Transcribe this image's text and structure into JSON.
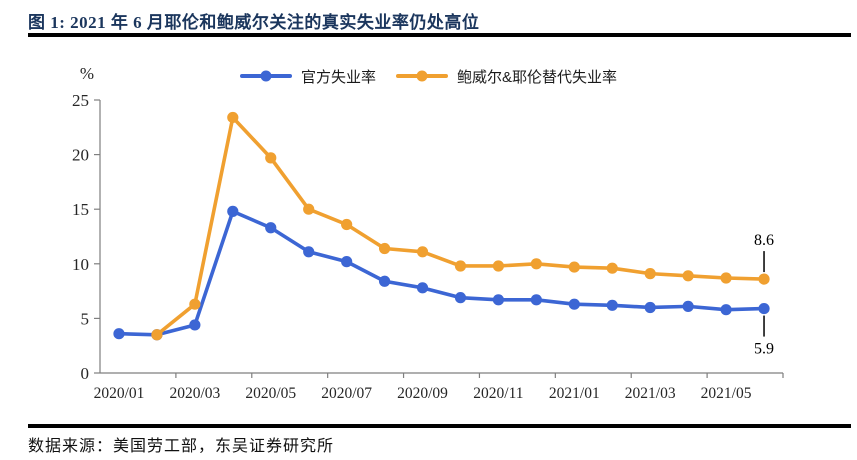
{
  "header": {
    "title": "图 1: 2021 年 6 月耶伦和鲍威尔关注的真实失业率仍处高位"
  },
  "footer": {
    "source": "数据来源：美国劳工部，东吴证券研究所"
  },
  "colors": {
    "title": "#1B365D",
    "rule": "#000000",
    "axis": "#7F7F7F",
    "tick": "#262626",
    "legend": "#1A1A1A",
    "callout": "#000000"
  },
  "chart_data": {
    "type": "line",
    "title": "",
    "y_axis_title": "%",
    "ylim": [
      0,
      25
    ],
    "y_ticks": [
      0,
      5,
      10,
      15,
      20,
      25
    ],
    "grid": false,
    "legend_position": "top",
    "x_categories": [
      "2020/01",
      "2020/02",
      "2020/03",
      "2020/04",
      "2020/05",
      "2020/06",
      "2020/07",
      "2020/08",
      "2020/09",
      "2020/10",
      "2020/11",
      "2020/12",
      "2021/01",
      "2021/02",
      "2021/03",
      "2021/04",
      "2021/05",
      "2021/06"
    ],
    "x_tick_labels": [
      "2020/01",
      "2020/03",
      "2020/05",
      "2020/07",
      "2020/09",
      "2020/11",
      "2021/01",
      "2021/03",
      "2021/05"
    ],
    "series": [
      {
        "id": "official",
        "name": "官方失业率",
        "color": "#3C66D4",
        "start_index": 0,
        "values": [
          3.6,
          3.5,
          4.4,
          14.8,
          13.3,
          11.1,
          10.2,
          8.4,
          7.8,
          6.9,
          6.7,
          6.7,
          6.3,
          6.2,
          6.0,
          6.1,
          5.8,
          5.9
        ],
        "end_label": "5.9",
        "label_position": "below"
      },
      {
        "id": "alternative",
        "name": "鲍威尔&耶伦替代失业率",
        "color": "#F0A030",
        "start_index": 1,
        "values": [
          3.5,
          6.3,
          23.4,
          19.7,
          15.0,
          13.6,
          11.4,
          11.1,
          9.8,
          9.8,
          10.0,
          9.7,
          9.6,
          9.1,
          8.9,
          8.7,
          8.6
        ],
        "end_label": "8.6",
        "label_position": "above"
      }
    ]
  }
}
